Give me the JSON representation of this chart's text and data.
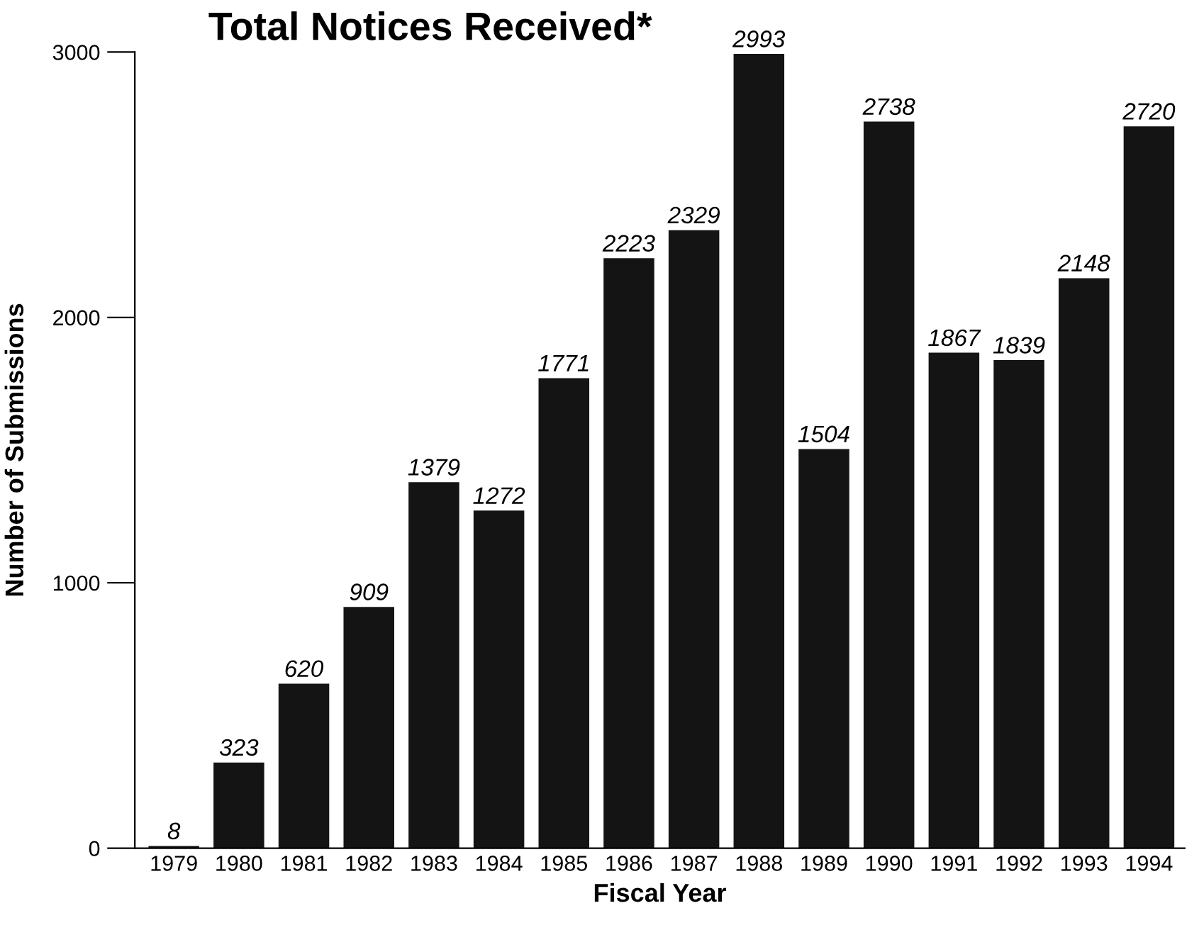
{
  "chart_data": {
    "type": "bar",
    "title": "Total Notices Received*",
    "xlabel": "Fiscal Year",
    "ylabel": "Number of Submissions",
    "categories": [
      "1979",
      "1980",
      "1981",
      "1982",
      "1983",
      "1984",
      "1985",
      "1986",
      "1987",
      "1988",
      "1989",
      "1990",
      "1991",
      "1992",
      "1993",
      "1994"
    ],
    "values": [
      8,
      323,
      620,
      909,
      1379,
      1272,
      1771,
      2223,
      2329,
      2993,
      1504,
      2738,
      1867,
      1839,
      2148,
      2720
    ],
    "color": "#141414",
    "ylim": [
      0,
      3000
    ],
    "yticks": [
      0,
      1000,
      2000,
      3000
    ],
    "data_labels": true,
    "grid": false,
    "legend": false
  }
}
